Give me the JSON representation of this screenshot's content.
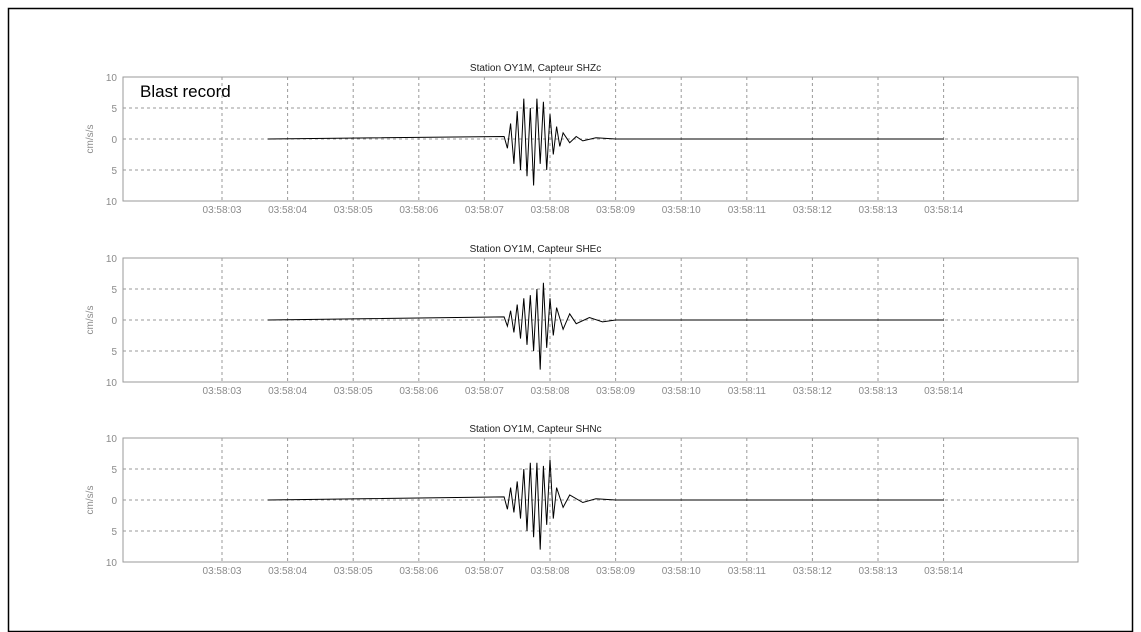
{
  "colors": {
    "frame": "#000000",
    "axes": "#9a9a9a",
    "grid": "#9a9a9a",
    "trace": "#000000",
    "tick_text": "#8a8a8a"
  },
  "annotation": "Blast record",
  "chart_data": [
    {
      "type": "line",
      "title": "Station OY1M, Capteur SHZc",
      "ylabel": "cm/s/s",
      "ylim": [
        -10,
        10
      ],
      "yticks": [
        10,
        5,
        0,
        5,
        10
      ],
      "xticks": [
        "03:58:03",
        "03:58:04",
        "03:58:05",
        "03:58:06",
        "03:58:07",
        "03:58:08",
        "03:58:09",
        "03:58:10",
        "03:58:11",
        "03:58:12",
        "03:58:13",
        "03:58:14"
      ],
      "grid": true,
      "series": [
        {
          "x": [
            3.7,
            7.3,
            7.35,
            7.4,
            7.45,
            7.5,
            7.55,
            7.6,
            7.65,
            7.7,
            7.75,
            7.8,
            7.85,
            7.9,
            7.95,
            8.0,
            8.05,
            8.1,
            8.15,
            8.2,
            8.3,
            8.4,
            8.5,
            8.7,
            9.0,
            14.0
          ],
          "y": [
            0,
            0.4,
            -1.5,
            2.5,
            -4,
            4.5,
            -5,
            6.5,
            -6,
            5,
            -7.5,
            6.5,
            -4,
            6,
            -5,
            4,
            -2.5,
            2,
            -1.2,
            1,
            -0.6,
            0.4,
            -0.3,
            0.2,
            0,
            0
          ]
        }
      ]
    },
    {
      "type": "line",
      "title": "Station OY1M, Capteur SHEc",
      "ylabel": "cm/s/s",
      "ylim": [
        -10,
        10
      ],
      "yticks": [
        10,
        5,
        0,
        5,
        10
      ],
      "xticks": [
        "03:58:03",
        "03:58:04",
        "03:58:05",
        "03:58:06",
        "03:58:07",
        "03:58:08",
        "03:58:09",
        "03:58:10",
        "03:58:11",
        "03:58:12",
        "03:58:13",
        "03:58:14"
      ],
      "grid": true,
      "series": [
        {
          "x": [
            3.7,
            7.3,
            7.35,
            7.4,
            7.45,
            7.5,
            7.55,
            7.6,
            7.65,
            7.7,
            7.75,
            7.8,
            7.85,
            7.9,
            7.95,
            8.0,
            8.05,
            8.1,
            8.2,
            8.3,
            8.4,
            8.6,
            8.8,
            9.0,
            14.0
          ],
          "y": [
            0,
            0.5,
            -1,
            1.5,
            -2,
            2.5,
            -3,
            3.5,
            -4,
            4,
            -5,
            5,
            -8,
            6,
            -4.5,
            3.5,
            -2.5,
            2,
            -1.5,
            1,
            -0.6,
            0.4,
            -0.3,
            0,
            0
          ]
        }
      ]
    },
    {
      "type": "line",
      "title": "Station OY1M, Capteur SHNc",
      "ylabel": "cm/s/s",
      "ylim": [
        -10,
        10
      ],
      "yticks": [
        10,
        5,
        0,
        5,
        10
      ],
      "xticks": [
        "03:58:03",
        "03:58:04",
        "03:58:05",
        "03:58:06",
        "03:58:07",
        "03:58:08",
        "03:58:09",
        "03:58:10",
        "03:58:11",
        "03:58:12",
        "03:58:13",
        "03:58:14"
      ],
      "grid": true,
      "series": [
        {
          "x": [
            3.7,
            7.3,
            7.35,
            7.4,
            7.45,
            7.5,
            7.55,
            7.6,
            7.65,
            7.7,
            7.75,
            7.8,
            7.85,
            7.9,
            7.95,
            8.0,
            8.05,
            8.1,
            8.2,
            8.3,
            8.5,
            8.7,
            9.0,
            14.0
          ],
          "y": [
            0,
            0.5,
            -1.5,
            2,
            -2,
            3,
            -3,
            5,
            -5,
            6,
            -6,
            6,
            -8,
            5.5,
            -4,
            6.5,
            -3,
            2,
            -1.2,
            0.8,
            -0.4,
            0.2,
            0,
            0
          ]
        }
      ]
    }
  ]
}
